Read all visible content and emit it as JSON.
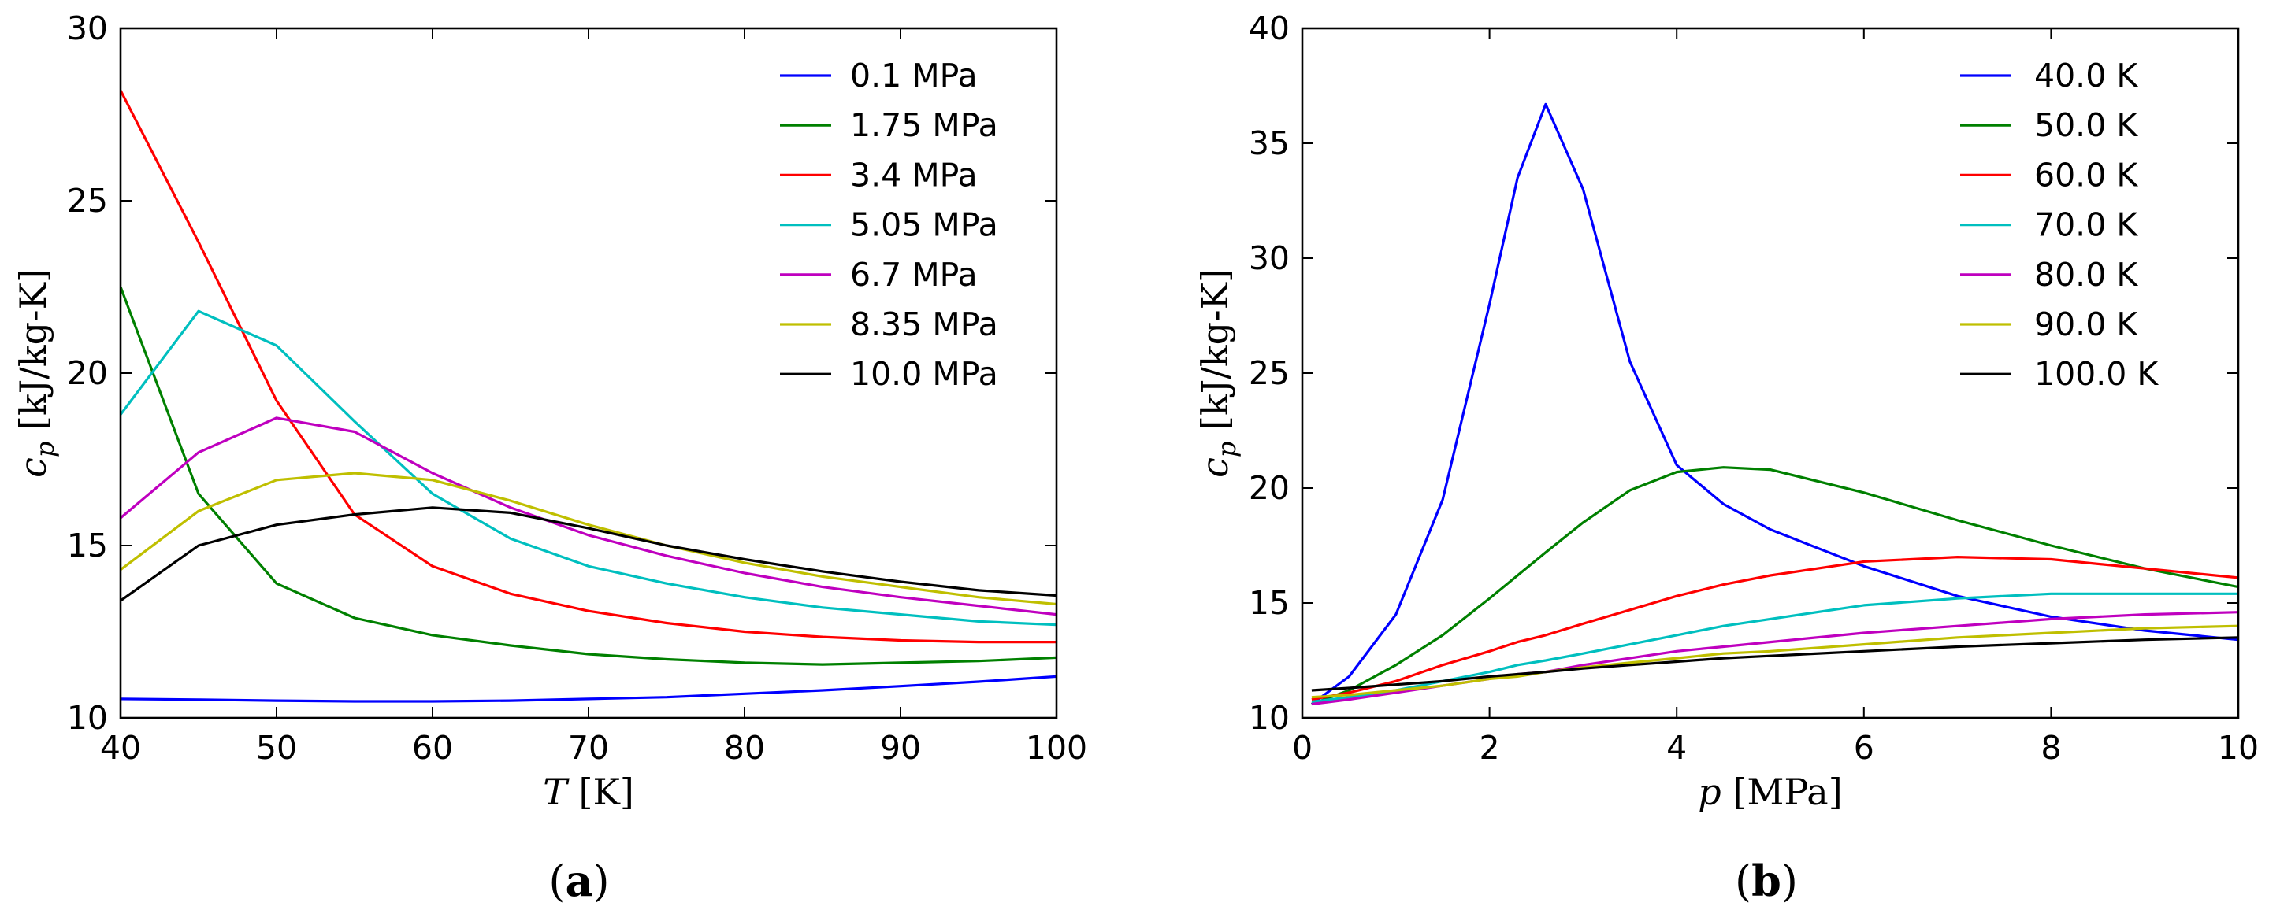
{
  "chart_data": [
    {
      "type": "line",
      "caption_letter": "a",
      "xlabel_var": "T",
      "xlabel_unit": "[K]",
      "ylabel_var": "c",
      "ylabel_sub": "p",
      "ylabel_unit": "[kJ/kg-K]",
      "xlim": [
        40,
        100
      ],
      "ylim": [
        10,
        30
      ],
      "xticks": [
        40,
        50,
        60,
        70,
        80,
        90,
        100
      ],
      "yticks": [
        10,
        15,
        20,
        25,
        30
      ],
      "legend_position": "top-right",
      "x": [
        40,
        45,
        50,
        55,
        60,
        65,
        70,
        75,
        80,
        85,
        90,
        95,
        100
      ],
      "series": [
        {
          "name": "0.1 MPa",
          "color": "#0000ff",
          "values": [
            10.55,
            10.53,
            10.5,
            10.48,
            10.48,
            10.5,
            10.55,
            10.6,
            10.7,
            10.8,
            10.92,
            11.05,
            11.2
          ]
        },
        {
          "name": "1.75 MPa",
          "color": "#008000",
          "values": [
            22.5,
            16.5,
            13.9,
            12.9,
            12.4,
            12.1,
            11.85,
            11.7,
            11.6,
            11.55,
            11.6,
            11.65,
            11.75
          ]
        },
        {
          "name": "3.4 MPa",
          "color": "#ff0000",
          "values": [
            28.2,
            23.8,
            19.2,
            15.9,
            14.4,
            13.6,
            13.1,
            12.75,
            12.5,
            12.35,
            12.25,
            12.2,
            12.2
          ]
        },
        {
          "name": "5.05 MPa",
          "color": "#00bfbf",
          "values": [
            18.8,
            21.8,
            20.8,
            18.6,
            16.5,
            15.2,
            14.4,
            13.9,
            13.5,
            13.2,
            13.0,
            12.8,
            12.7
          ]
        },
        {
          "name": "6.7 MPa",
          "color": "#bf00bf",
          "values": [
            15.8,
            17.7,
            18.7,
            18.3,
            17.1,
            16.1,
            15.3,
            14.7,
            14.2,
            13.8,
            13.5,
            13.25,
            13.0
          ]
        },
        {
          "name": "8.35 MPa",
          "color": "#bfbf00",
          "values": [
            14.3,
            16.0,
            16.9,
            17.1,
            16.9,
            16.3,
            15.6,
            15.0,
            14.5,
            14.1,
            13.8,
            13.5,
            13.3
          ]
        },
        {
          "name": "10.0 MPa",
          "color": "#000000",
          "values": [
            13.4,
            15.0,
            15.6,
            15.9,
            16.1,
            15.95,
            15.5,
            15.0,
            14.6,
            14.25,
            13.95,
            13.7,
            13.55
          ]
        }
      ]
    },
    {
      "type": "line",
      "caption_letter": "b",
      "xlabel_var": "p",
      "xlabel_unit": "[MPa]",
      "ylabel_var": "c",
      "ylabel_sub": "p",
      "ylabel_unit": "[kJ/kg-K]",
      "xlim": [
        0,
        10
      ],
      "ylim": [
        10,
        40
      ],
      "xticks": [
        0,
        2,
        4,
        6,
        8,
        10
      ],
      "yticks": [
        10,
        15,
        20,
        25,
        30,
        35,
        40
      ],
      "legend_position": "top-right",
      "x": [
        0.1,
        0.5,
        1.0,
        1.5,
        2.0,
        2.3,
        2.6,
        3.0,
        3.5,
        4.0,
        4.5,
        5.0,
        6.0,
        7.0,
        8.0,
        9.0,
        10.0
      ],
      "series": [
        {
          "name": "40.0 K",
          "color": "#0000ff",
          "values": [
            10.6,
            11.8,
            14.5,
            19.5,
            28.0,
            33.5,
            36.7,
            33.0,
            25.5,
            21.0,
            19.3,
            18.2,
            16.6,
            15.3,
            14.4,
            13.8,
            13.4
          ]
        },
        {
          "name": "50.0 K",
          "color": "#008000",
          "values": [
            10.6,
            11.2,
            12.3,
            13.6,
            15.2,
            16.2,
            17.2,
            18.5,
            19.9,
            20.7,
            20.9,
            20.8,
            19.8,
            18.6,
            17.5,
            16.5,
            15.7
          ]
        },
        {
          "name": "60.0 K",
          "color": "#ff0000",
          "values": [
            10.8,
            11.1,
            11.6,
            12.3,
            12.9,
            13.3,
            13.6,
            14.1,
            14.7,
            15.3,
            15.8,
            16.2,
            16.8,
            17.0,
            16.9,
            16.5,
            16.1
          ]
        },
        {
          "name": "70.0 K",
          "color": "#00bfbf",
          "values": [
            10.7,
            10.9,
            11.2,
            11.6,
            12.0,
            12.3,
            12.5,
            12.8,
            13.2,
            13.6,
            14.0,
            14.3,
            14.9,
            15.2,
            15.4,
            15.4,
            15.4
          ]
        },
        {
          "name": "80.0 K",
          "color": "#bf00bf",
          "values": [
            10.6,
            10.8,
            11.1,
            11.4,
            11.7,
            11.9,
            12.0,
            12.3,
            12.6,
            12.9,
            13.1,
            13.3,
            13.7,
            14.0,
            14.3,
            14.5,
            14.6
          ]
        },
        {
          "name": "90.0 K",
          "color": "#bfbf00",
          "values": [
            10.9,
            11.0,
            11.2,
            11.4,
            11.7,
            11.8,
            12.0,
            12.2,
            12.4,
            12.6,
            12.8,
            12.9,
            13.2,
            13.5,
            13.7,
            13.9,
            14.0
          ]
        },
        {
          "name": "100.0 K",
          "color": "#000000",
          "values": [
            11.2,
            11.3,
            11.45,
            11.6,
            11.8,
            11.9,
            12.0,
            12.15,
            12.3,
            12.45,
            12.6,
            12.7,
            12.9,
            13.1,
            13.25,
            13.4,
            13.5
          ]
        }
      ]
    }
  ]
}
